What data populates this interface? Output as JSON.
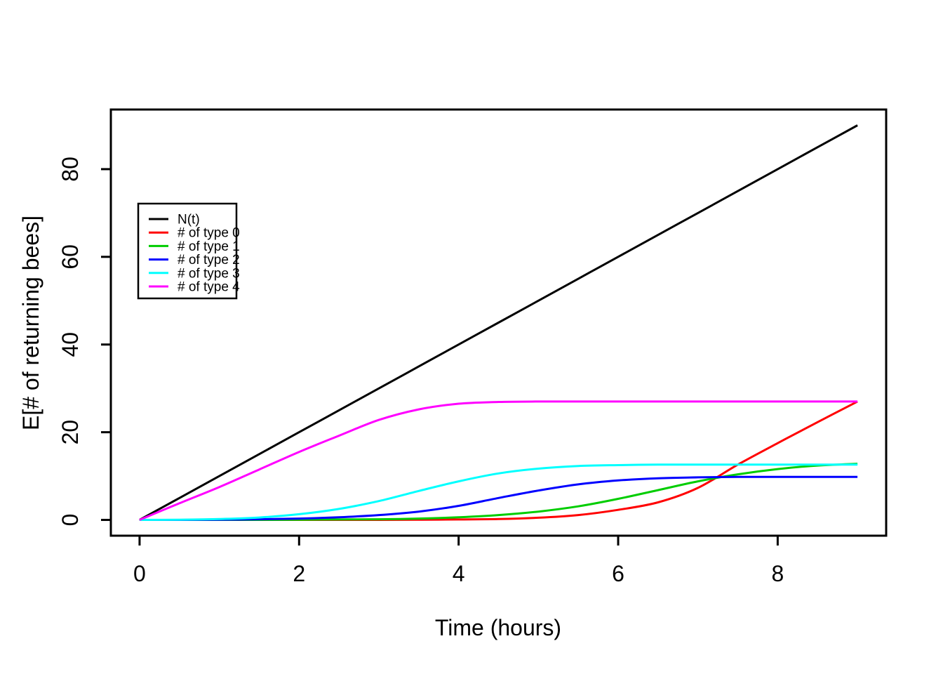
{
  "chart_data": {
    "type": "line",
    "title": "",
    "xlabel": "Time (hours)",
    "ylabel": "E[# of returning bees]",
    "xlim": [
      0,
      9
    ],
    "ylim": [
      0,
      90
    ],
    "xticks": [
      0,
      2,
      4,
      6,
      8
    ],
    "yticks": [
      0,
      20,
      40,
      60,
      80
    ],
    "grid": false,
    "legend_position": "upper-left-inside",
    "axis_color": "#000000",
    "background_color": "#ffffff",
    "x": [
      0,
      0.5,
      1,
      1.5,
      2,
      2.5,
      3,
      3.5,
      4,
      4.5,
      5,
      5.5,
      6,
      6.5,
      7,
      7.5,
      8,
      8.5,
      9
    ],
    "series": [
      {
        "name": "N(t)",
        "color": "#000000",
        "values": [
          0,
          5,
          10,
          15,
          20,
          25,
          30,
          35,
          40,
          45,
          50,
          55,
          60,
          65,
          70,
          75,
          80,
          85,
          90
        ]
      },
      {
        "name": "# of type 0",
        "color": "#FF0000",
        "values": [
          0,
          0,
          0,
          0,
          0,
          0,
          0,
          0.05,
          0.1,
          0.2,
          0.5,
          1.1,
          2.3,
          4.0,
          7.3,
          12.6,
          17.5,
          22.3,
          27
        ]
      },
      {
        "name": "# of type 1",
        "color": "#00CD00",
        "values": [
          0,
          0,
          0,
          0,
          0.05,
          0.1,
          0.15,
          0.3,
          0.6,
          1.1,
          1.9,
          3.1,
          4.8,
          6.8,
          8.8,
          10.4,
          11.6,
          12.4,
          12.8
        ]
      },
      {
        "name": "# of type 2",
        "color": "#0000FF",
        "values": [
          0,
          0,
          0.05,
          0.15,
          0.3,
          0.6,
          1.1,
          1.9,
          3.2,
          5.0,
          6.7,
          8.1,
          9.0,
          9.5,
          9.7,
          9.8,
          9.8,
          9.8,
          9.8
        ]
      },
      {
        "name": "# of type 3",
        "color": "#00FFFF",
        "values": [
          0,
          0.05,
          0.2,
          0.55,
          1.3,
          2.5,
          4.3,
          6.6,
          8.8,
          10.6,
          11.7,
          12.3,
          12.5,
          12.6,
          12.6,
          12.6,
          12.6,
          12.6,
          12.6
        ]
      },
      {
        "name": "# of type 4",
        "color": "#FF00FF",
        "values": [
          0,
          3.8,
          7.5,
          11.5,
          15.5,
          19.2,
          22.8,
          25.2,
          26.5,
          26.9,
          27,
          27,
          27,
          27,
          27,
          27,
          27,
          27,
          27
        ]
      }
    ]
  }
}
